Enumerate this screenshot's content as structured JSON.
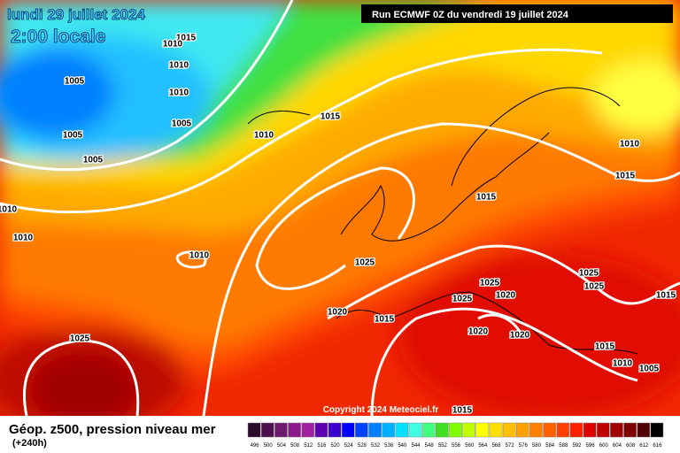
{
  "header": {
    "date": "lundi 29 juillet 2024",
    "time": "2:00 locale",
    "run": "Run ECMWF 0Z du vendredi 19 juillet 2024"
  },
  "isobar_labels": [
    "1015",
    "1010",
    "1010",
    "1005",
    "1010",
    "1005",
    "1005",
    "1005",
    "1015",
    "1010",
    "1010",
    "1015",
    "1015",
    "1010",
    "1010",
    "1010",
    "1025",
    "1025",
    "1025",
    "1025",
    "1020",
    "1025",
    "1015",
    "1020",
    "1015",
    "1020",
    "1020",
    "1025",
    "1015",
    "1010",
    "1005",
    "1015"
  ],
  "footer": {
    "copyright": "Copyright 2024 Meteociel.fr",
    "field": "Géop. z500, pression niveau mer",
    "lead": "(+240h)"
  },
  "legend": {
    "values": [
      "496",
      "500",
      "504",
      "508",
      "512",
      "516",
      "520",
      "524",
      "528",
      "532",
      "536",
      "540",
      "544",
      "548",
      "552",
      "556",
      "560",
      "564",
      "568",
      "572",
      "576",
      "580",
      "584",
      "588",
      "592",
      "596",
      "600",
      "604",
      "608",
      "612",
      "616"
    ],
    "colors": [
      "#2b0b2b",
      "#4c104c",
      "#6e1a6e",
      "#8c1a8c",
      "#a020a0",
      "#5c00b0",
      "#3a00d0",
      "#0000ff",
      "#0040ff",
      "#0080ff",
      "#00b0ff",
      "#00e0ff",
      "#40ffe0",
      "#40ff80",
      "#40e020",
      "#80ff00",
      "#c0ff00",
      "#ffff00",
      "#ffe000",
      "#ffc000",
      "#ffa000",
      "#ff8000",
      "#ff6000",
      "#ff4000",
      "#ff2000",
      "#e00000",
      "#c00000",
      "#a00000",
      "#800000",
      "#500000",
      "#000000"
    ]
  }
}
